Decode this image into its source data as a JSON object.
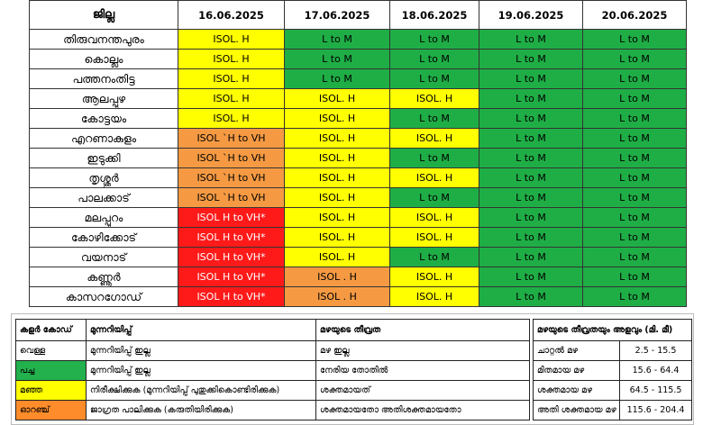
{
  "forecast": {
    "header": {
      "district_col": "ജില്ല",
      "dates": [
        "16.06.2025",
        "17.06.2025",
        "18.06.2025",
        "19.06.2025",
        "20.06.2025"
      ]
    },
    "colors": {
      "yellow": "#ffff00",
      "green": "#1fae46",
      "orange": "#f59a43",
      "red": "#ff1a1a"
    },
    "rows": [
      {
        "district": "തിരുവനന്തപുരം",
        "cells": [
          {
            "text": "ISOL. H",
            "color": "yellow"
          },
          {
            "text": "L to M",
            "color": "green"
          },
          {
            "text": "L to M",
            "color": "green"
          },
          {
            "text": "L to M",
            "color": "green"
          },
          {
            "text": "L to M",
            "color": "green"
          }
        ]
      },
      {
        "district": "കൊല്ലം",
        "cells": [
          {
            "text": "ISOL. H",
            "color": "yellow"
          },
          {
            "text": "L to M",
            "color": "green"
          },
          {
            "text": "L to M",
            "color": "green"
          },
          {
            "text": "L to M",
            "color": "green"
          },
          {
            "text": "L to M",
            "color": "green"
          }
        ]
      },
      {
        "district": "പത്തനംതിട്ട",
        "cells": [
          {
            "text": "ISOL. H",
            "color": "yellow"
          },
          {
            "text": "L to M",
            "color": "green"
          },
          {
            "text": "L to M",
            "color": "green"
          },
          {
            "text": "L to M",
            "color": "green"
          },
          {
            "text": "L to M",
            "color": "green"
          }
        ]
      },
      {
        "district": "ആലപ്പുഴ",
        "cells": [
          {
            "text": "ISOL. H",
            "color": "yellow"
          },
          {
            "text": "ISOL. H",
            "color": "yellow"
          },
          {
            "text": "ISOL. H",
            "color": "yellow"
          },
          {
            "text": "L to M",
            "color": "green"
          },
          {
            "text": "L to M",
            "color": "green"
          }
        ]
      },
      {
        "district": "കോട്ടയം",
        "cells": [
          {
            "text": "ISOL. H",
            "color": "yellow"
          },
          {
            "text": "ISOL. H",
            "color": "yellow"
          },
          {
            "text": "L to M",
            "color": "green"
          },
          {
            "text": "L to M",
            "color": "green"
          },
          {
            "text": "L to M",
            "color": "green"
          }
        ]
      },
      {
        "district": "എറണാകുളം",
        "cells": [
          {
            "text": "ISOL `H to VH",
            "color": "orange"
          },
          {
            "text": "ISOL. H",
            "color": "yellow"
          },
          {
            "text": "ISOL. H",
            "color": "yellow"
          },
          {
            "text": "L to M",
            "color": "green"
          },
          {
            "text": "L to M",
            "color": "green"
          }
        ]
      },
      {
        "district": "ഇടുക്കി",
        "cells": [
          {
            "text": "ISOL `H to VH",
            "color": "orange"
          },
          {
            "text": "ISOL. H",
            "color": "yellow"
          },
          {
            "text": "L to M",
            "color": "green"
          },
          {
            "text": "L to M",
            "color": "green"
          },
          {
            "text": "L to M",
            "color": "green"
          }
        ]
      },
      {
        "district": "തൃശ്ശൂർ",
        "cells": [
          {
            "text": "ISOL `H to VH",
            "color": "orange"
          },
          {
            "text": "ISOL. H",
            "color": "yellow"
          },
          {
            "text": "ISOL. H",
            "color": "yellow"
          },
          {
            "text": "L to M",
            "color": "green"
          },
          {
            "text": "L to M",
            "color": "green"
          }
        ]
      },
      {
        "district": "പാലക്കാട്",
        "cells": [
          {
            "text": "ISOL `H to VH",
            "color": "orange"
          },
          {
            "text": "ISOL. H",
            "color": "yellow"
          },
          {
            "text": "L to M",
            "color": "green"
          },
          {
            "text": "L to M",
            "color": "green"
          },
          {
            "text": "L to M",
            "color": "green"
          }
        ]
      },
      {
        "district": "മലപ്പുറം",
        "cells": [
          {
            "text": "ISOL H to VH*",
            "color": "red"
          },
          {
            "text": "ISOL. H",
            "color": "yellow"
          },
          {
            "text": "ISOL. H",
            "color": "yellow"
          },
          {
            "text": "L to M",
            "color": "green"
          },
          {
            "text": "L to M",
            "color": "green"
          }
        ]
      },
      {
        "district": "കോഴിക്കോട്",
        "cells": [
          {
            "text": "ISOL H to VH*",
            "color": "red"
          },
          {
            "text": "ISOL. H",
            "color": "yellow"
          },
          {
            "text": "ISOL. H",
            "color": "yellow"
          },
          {
            "text": "L to M",
            "color": "green"
          },
          {
            "text": "L to M",
            "color": "green"
          }
        ]
      },
      {
        "district": "വയനാട്",
        "cells": [
          {
            "text": "ISOL H to VH*",
            "color": "red"
          },
          {
            "text": "ISOL. H",
            "color": "yellow"
          },
          {
            "text": "L to M",
            "color": "green"
          },
          {
            "text": "L to M",
            "color": "green"
          },
          {
            "text": "L to M",
            "color": "green"
          }
        ]
      },
      {
        "district": "കണ്ണൂർ",
        "cells": [
          {
            "text": "ISOL H to VH*",
            "color": "red"
          },
          {
            "text": "ISOL . H",
            "color": "orange"
          },
          {
            "text": "ISOL. H",
            "color": "yellow"
          },
          {
            "text": "L to M",
            "color": "green"
          },
          {
            "text": "L to M",
            "color": "green"
          }
        ]
      },
      {
        "district": "കാസറഗോഡ്",
        "cells": [
          {
            "text": "ISOL H to VH*",
            "color": "red"
          },
          {
            "text": "ISOL . H",
            "color": "orange"
          },
          {
            "text": "ISOL. H",
            "color": "yellow"
          },
          {
            "text": "L to M",
            "color": "green"
          },
          {
            "text": "L to M",
            "color": "green"
          }
        ]
      }
    ]
  },
  "legend": {
    "left": {
      "headers": {
        "color_code": "കളർ കോഡ്",
        "warning": "മുന്നറിയിപ്പ്",
        "intensity": "മഴയുടെ തീവ്രത"
      },
      "rows": [
        {
          "color_name": "വെള്ള",
          "swatch": "white",
          "warning": "മുന്നറിയിപ്പ് ഇല്ല",
          "intensity": "മഴ ഇല്ല"
        },
        {
          "color_name": "പച്ച",
          "swatch": "green",
          "warning": "മുന്നറിയിപ്പ് ഇല്ല",
          "intensity": "നേരിയ തോതിൽ"
        },
        {
          "color_name": "മഞ്ഞ",
          "swatch": "yellow",
          "warning": "നിരീക്ഷിക്കുക (മുന്നറിയിപ്പ് പുതുക്കികൊണ്ടിരിക്കുക)",
          "intensity": "ശക്തമായത്"
        },
        {
          "color_name": "ഓറഞ്ച്",
          "swatch": "orange",
          "warning": "ജാഗ്രത പാലിക്കുക (കരുതിയിരിക്കുക)",
          "intensity": "ശക്തമായതോ അതിശക്തമായതോ"
        }
      ]
    },
    "right": {
      "header": "മഴയുടെ തീവ്രതയും അളവും (മി. മീ)",
      "rows": [
        {
          "label": "ചാറ്റൽ മഴ",
          "range": "2.5 - 15.5"
        },
        {
          "label": "മിതമായ മഴ",
          "range": "15.6 - 64.4"
        },
        {
          "label": "ശക്തമായ മഴ",
          "range": "64.5 - 115.5"
        },
        {
          "label": "അതി ശക്തമായ മഴ",
          "range": "115.6 - 204.4"
        }
      ]
    }
  }
}
